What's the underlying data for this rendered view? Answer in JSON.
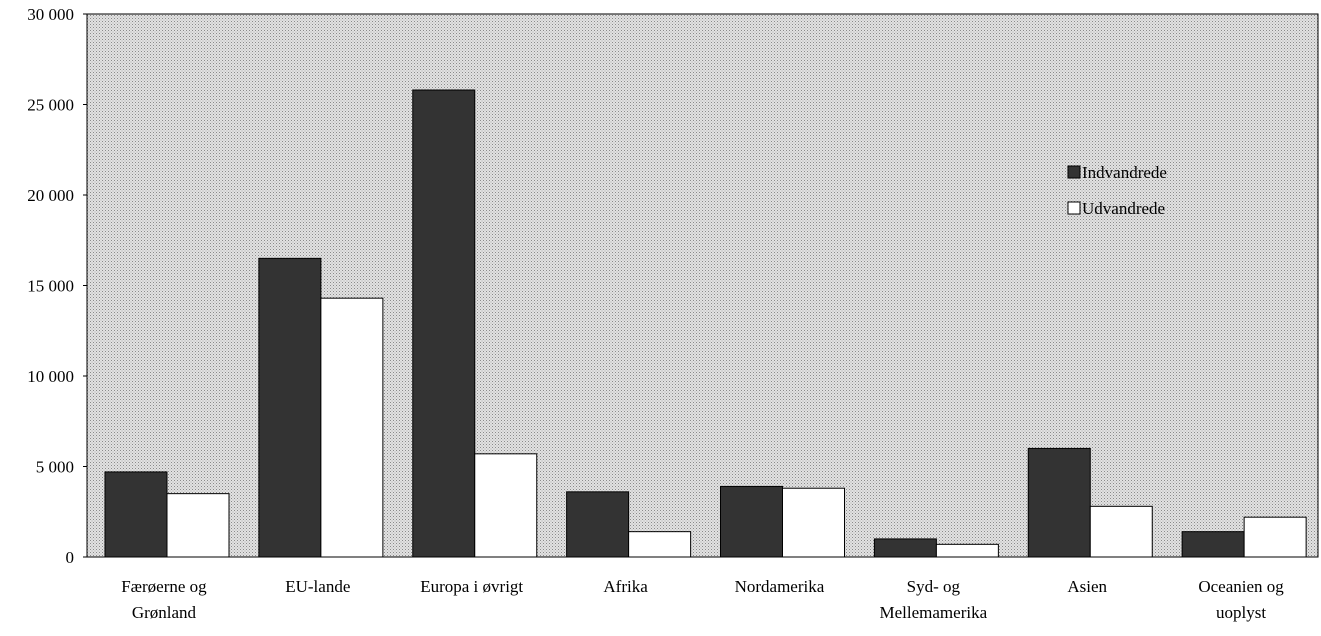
{
  "chart_data": {
    "type": "bar",
    "categories": [
      "Færøerne og\nGrønland",
      "EU-lande",
      "Europa i øvrigt",
      "Afrika",
      "Nordamerika",
      "Syd- og\nMellemamerika",
      "Asien",
      "Oceanien og\nuoplyst"
    ],
    "series": [
      {
        "name": "Indvandrede",
        "color": "#333333",
        "values": [
          4700,
          16500,
          25800,
          3600,
          3900,
          1000,
          6000,
          1400
        ]
      },
      {
        "name": "Udvandrede",
        "color": "#ffffff",
        "values": [
          3500,
          14300,
          5700,
          1400,
          3800,
          700,
          2800,
          2200
        ]
      }
    ],
    "ylim": [
      0,
      30000
    ],
    "yticks": [
      0,
      {
        "value": 5000,
        "label": "5 000"
      },
      {
        "value": 10000,
        "label": "10 000"
      },
      {
        "value": 15000,
        "label": "15 000"
      },
      {
        "value": 20000,
        "label": "20 000"
      },
      {
        "value": 25000,
        "label": "25 000"
      },
      {
        "value": 30000,
        "label": "30 000"
      }
    ],
    "legend": "right"
  }
}
